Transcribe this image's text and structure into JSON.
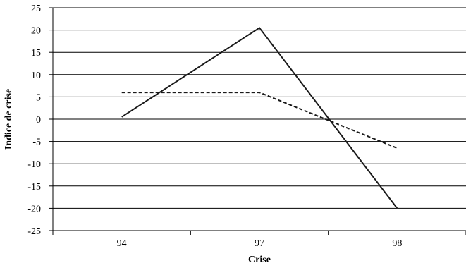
{
  "chart_data": {
    "type": "line",
    "title": "",
    "xlabel": "Crise",
    "ylabel": "Indice de crise",
    "categories": [
      "94",
      "97",
      "98"
    ],
    "ylim": [
      -25,
      25
    ],
    "yticks": [
      25,
      20,
      15,
      10,
      5,
      0,
      -5,
      -10,
      -15,
      -20,
      -25
    ],
    "grid": true,
    "legend": "none",
    "series": [
      {
        "values": [
          0.5,
          20.5,
          -20
        ],
        "color": "#1a1a1a",
        "style": "solid"
      },
      {
        "values": [
          6,
          6,
          -6.5
        ],
        "color": "#1a1a1a",
        "style": "dashed"
      }
    ]
  }
}
